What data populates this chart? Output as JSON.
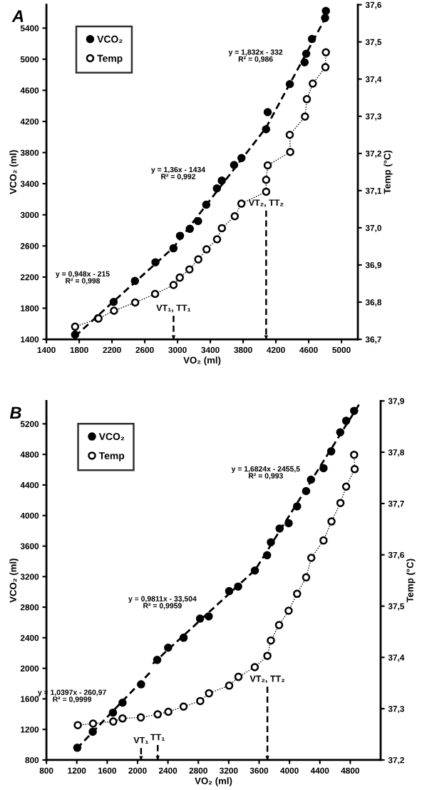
{
  "chart_data": [
    {
      "type": "scatter",
      "title": "A",
      "xlabel": "VO₂ (ml)",
      "ylabel": "VCO₂ (ml)",
      "y2label": "Temp (°C)",
      "xlim": [
        1400,
        5200
      ],
      "xticks": [
        1400,
        1800,
        2200,
        2600,
        3000,
        3400,
        3800,
        4200,
        4600,
        5000
      ],
      "ylim": [
        1400,
        5700
      ],
      "yticks": [
        1400,
        1800,
        2200,
        2600,
        3000,
        3400,
        3800,
        4200,
        4600,
        5000,
        5400
      ],
      "y2lim": [
        36.7,
        37.6
      ],
      "y2ticks": [
        {
          "value": 36.7,
          "label": "36,7"
        },
        {
          "value": 36.8,
          "label": "36,8"
        },
        {
          "value": 36.9,
          "label": "36,9"
        },
        {
          "value": 37.0,
          "label": "37,0"
        },
        {
          "value": 37.1,
          "label": "37,1"
        },
        {
          "value": 37.2,
          "label": "37,2"
        },
        {
          "value": 37.3,
          "label": "37,3"
        },
        {
          "value": 37.4,
          "label": "37,4"
        },
        {
          "value": 37.5,
          "label": "37,5"
        },
        {
          "value": 37.6,
          "label": "37,6"
        }
      ],
      "grid": false,
      "legend": "top left",
      "series": [
        {
          "name": "VCO₂",
          "color": "#000000",
          "marker": "circle",
          "x": [
            1750,
            2030,
            2220,
            2480,
            2730,
            2950,
            3030,
            3150,
            3250,
            3350,
            3480,
            3540,
            3690,
            3780,
            4080,
            4100,
            4370,
            4550,
            4570,
            4640,
            4800,
            4810
          ],
          "values": [
            1460,
            1670,
            1880,
            2150,
            2390,
            2570,
            2730,
            2820,
            2920,
            3130,
            3340,
            3440,
            3640,
            3730,
            4100,
            4320,
            4680,
            4960,
            5070,
            5260,
            5530,
            5620
          ]
        },
        {
          "name": "Temp",
          "type": "line",
          "axis": "y2",
          "color": "#000000",
          "marker": "circle",
          "line_style": "dotted",
          "x": [
            1750,
            2035,
            2225,
            2483,
            2726,
            2951,
            3027,
            3145,
            3253,
            3354,
            3482,
            3541,
            3698,
            3779,
            4081,
            4081,
            4100,
            4375,
            4369,
            4555,
            4578,
            4650,
            4804,
            4810
          ],
          "values": [
            36.734,
            36.756,
            36.777,
            36.799,
            36.822,
            36.846,
            36.866,
            36.888,
            36.915,
            36.942,
            36.969,
            36.999,
            37.031,
            37.065,
            37.097,
            37.129,
            37.168,
            37.204,
            37.25,
            37.299,
            37.346,
            37.388,
            37.432,
            37.472
          ]
        },
        {
          "type": "line",
          "color": "#000000",
          "marker": "none",
          "line_style": "dashed",
          "x": [
            1750,
            2950,
            4080,
            4840
          ],
          "values": [
            1440,
            2580,
            4120,
            5600
          ]
        }
      ],
      "ref_lines": [
        {
          "axis": "x",
          "value": 2951,
          "label": "VT₁, TT₁",
          "line_style": "dashed"
        },
        {
          "axis": "x",
          "value": 4081,
          "label": "VT₂, TT₂",
          "line_style": "dashed"
        }
      ],
      "annotations": [
        "y = 0,948x - 215\nR² = 0,998",
        "y = 1,36x - 1434\nR² = 0,992",
        "y = 1,832x - 332\nR² = 0,986"
      ]
    },
    {
      "type": "scatter",
      "title": "B",
      "xlabel": "VO₂ (ml)",
      "ylabel": "VCO₂ (ml)",
      "y2label": "Temp (°C)",
      "xlim": [
        800,
        5200
      ],
      "xticks": [
        800,
        1200,
        1600,
        2000,
        2400,
        2800,
        3200,
        3600,
        4000,
        4400,
        4800
      ],
      "ylim": [
        800,
        5500
      ],
      "yticks": [
        800,
        1200,
        1600,
        2000,
        2400,
        2800,
        3200,
        3600,
        4000,
        4400,
        4800,
        5200
      ],
      "y2lim": [
        37.2,
        37.9
      ],
      "y2ticks": [
        {
          "value": 37.2,
          "label": "37,2"
        },
        {
          "value": 37.3,
          "label": "37,3"
        },
        {
          "value": 37.4,
          "label": "37,4"
        },
        {
          "value": 37.5,
          "label": "37,5"
        },
        {
          "value": 37.6,
          "label": "37,6"
        },
        {
          "value": 37.7,
          "label": "37,7"
        },
        {
          "value": 37.8,
          "label": "37,8"
        },
        {
          "value": 37.9,
          "label": "37,9"
        }
      ],
      "grid": false,
      "legend": "top left",
      "series": [
        {
          "name": "VCO₂",
          "color": "#000000",
          "marker": "circle",
          "x": [
            1206,
            1410,
            1676,
            1802,
            2046,
            2258,
            2402,
            2606,
            2822,
            2937,
            3206,
            3324,
            3544,
            3705,
            3755,
            3870,
            3989,
            4100,
            4219,
            4283,
            4448,
            4549,
            4668,
            4746,
            4851
          ],
          "values": [
            960,
            1170,
            1420,
            1550,
            1790,
            2110,
            2270,
            2400,
            2650,
            2680,
            3010,
            3070,
            3280,
            3480,
            3650,
            3830,
            3900,
            4120,
            4320,
            4470,
            4620,
            4840,
            5090,
            5240,
            5370
          ]
        },
        {
          "name": "Temp",
          "type": "line",
          "axis": "y2",
          "color": "#000000",
          "marker": "circle",
          "line_style": "dotted",
          "x": [
            1213,
            1414,
            1680,
            1802,
            2043,
            2265,
            2405,
            2606,
            2825,
            2940,
            3206,
            3328,
            3543,
            3709,
            3755,
            3863,
            3989,
            4100,
            4219,
            4287,
            4448,
            4553,
            4671,
            4746,
            4858,
            4851
          ],
          "values": [
            37.268,
            37.271,
            37.275,
            37.281,
            37.283,
            37.289,
            37.294,
            37.304,
            37.315,
            37.33,
            37.345,
            37.362,
            37.381,
            37.403,
            37.433,
            37.463,
            37.491,
            37.524,
            37.556,
            37.594,
            37.628,
            37.665,
            37.701,
            37.733,
            37.767,
            37.795
          ]
        },
        {
          "type": "line",
          "color": "#000000",
          "marker": "none",
          "line_style": "dashed",
          "x": [
            1200,
            2170
          ],
          "values": [
            950,
            1950
          ]
        },
        {
          "type": "line",
          "color": "#000000",
          "marker": "none",
          "line_style": "dashed",
          "x": [
            2200,
            3550,
            4920
          ],
          "values": [
            2060,
            3290,
            5460
          ]
        }
      ],
      "ref_lines": [
        {
          "axis": "x",
          "value": 2046,
          "label": "VT₁",
          "line_style": "dashed"
        },
        {
          "axis": "x",
          "value": 2265,
          "label": "TT₁",
          "line_style": "dashed"
        },
        {
          "axis": "x",
          "value": 3709,
          "label": "VT₂, TT₂",
          "line_style": "dashed"
        }
      ],
      "annotations": [
        "y = 1,0397x - 260,97\nR² = 0,9999",
        "y = 0,9811x - 33,504\nR² = 0,9959",
        "y = 1,6824x - 2455,5\nR² = 0,993"
      ]
    }
  ]
}
